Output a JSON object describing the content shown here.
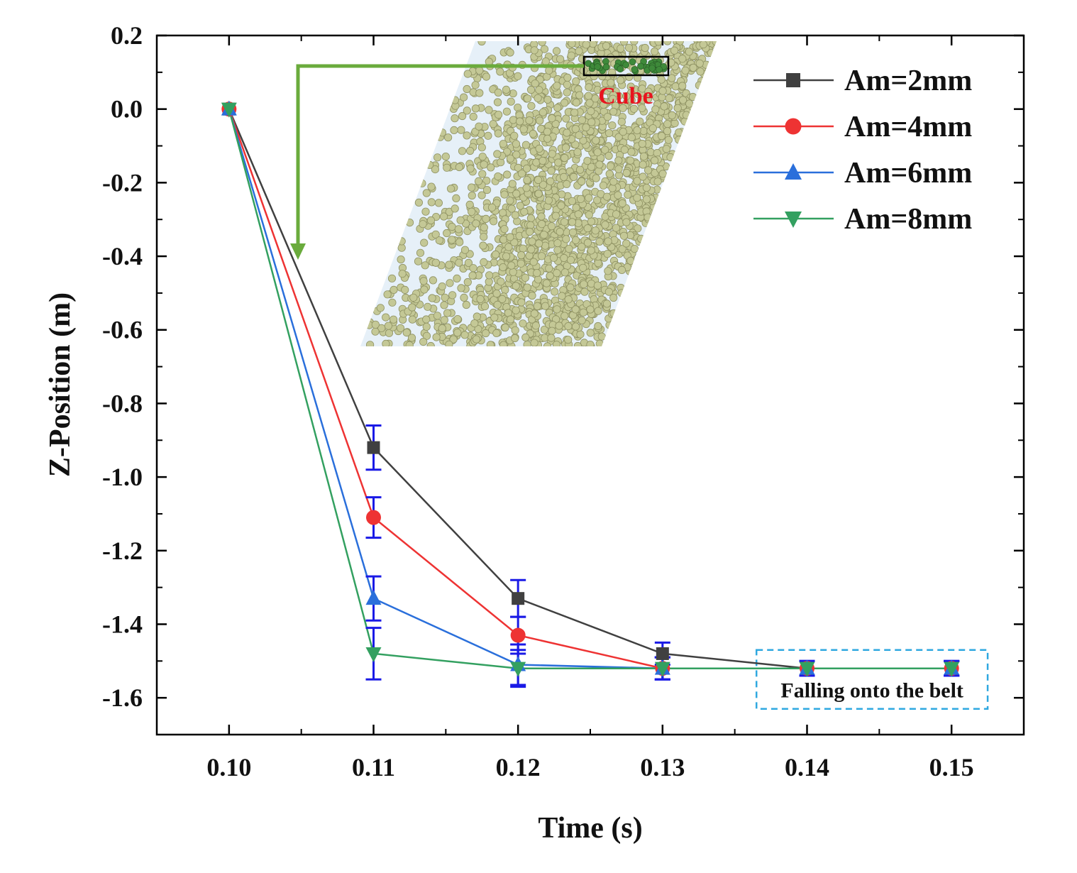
{
  "chart_data": {
    "type": "line",
    "title": "",
    "xlabel": "Time (s)",
    "ylabel": "Z-Position (m)",
    "xlim": [
      0.095,
      0.155
    ],
    "ylim": [
      -1.7,
      0.2
    ],
    "x": [
      0.1,
      0.11,
      0.12,
      0.13,
      0.14,
      0.15
    ],
    "x_ticks": [
      0.1,
      0.11,
      0.12,
      0.13,
      0.14,
      0.15
    ],
    "x_tick_labels": [
      "0.10",
      "0.11",
      "0.12",
      "0.13",
      "0.14",
      "0.15"
    ],
    "y_ticks": [
      0.2,
      0.0,
      -0.2,
      -0.4,
      -0.6,
      -0.8,
      -1.0,
      -1.2,
      -1.4,
      -1.6
    ],
    "y_tick_labels": [
      "0.2",
      "0.0",
      "-0.2",
      "-0.4",
      "-0.6",
      "-0.8",
      "-1.0",
      "-1.2",
      "-1.4",
      "-1.6"
    ],
    "grid": false,
    "legend_position": "top-right",
    "error_bar_color": "#1a1ae6",
    "series": [
      {
        "name": "Am=2mm",
        "color": "#404040",
        "marker": "square",
        "values": [
          0.0,
          -0.92,
          -1.33,
          -1.48,
          -1.52,
          -1.52
        ],
        "errors": [
          0.0,
          0.06,
          0.05,
          0.03,
          0.02,
          0.02
        ]
      },
      {
        "name": "Am=4mm",
        "color": "#ee3333",
        "marker": "circle",
        "values": [
          0.0,
          -1.11,
          -1.43,
          -1.52,
          -1.52,
          -1.52
        ],
        "errors": [
          0.0,
          0.055,
          0.05,
          0.03,
          0.02,
          0.02
        ]
      },
      {
        "name": "Am=6mm",
        "color": "#2a6fdb",
        "marker": "triangle-up",
        "values": [
          0.0,
          -1.33,
          -1.51,
          -1.52,
          -1.52,
          -1.52
        ],
        "errors": [
          0.0,
          0.06,
          0.055,
          0.03,
          0.02,
          0.02
        ]
      },
      {
        "name": "Am=8mm",
        "color": "#33a060",
        "marker": "triangle-down",
        "values": [
          0.0,
          -1.48,
          -1.52,
          -1.52,
          -1.52,
          -1.52
        ],
        "errors": [
          0.0,
          0.07,
          0.05,
          0.03,
          0.02,
          0.02
        ]
      }
    ],
    "annotations": {
      "inset_label": "Cube",
      "inset_label_color": "#e8141e",
      "arrow_color": "#6aab3c",
      "belt_label": "Falling onto the belt",
      "belt_box_color": "#2fa8e0",
      "belt_box_x": [
        0.1365,
        0.1525
      ],
      "belt_box_y": [
        -1.63,
        -1.47
      ]
    }
  }
}
